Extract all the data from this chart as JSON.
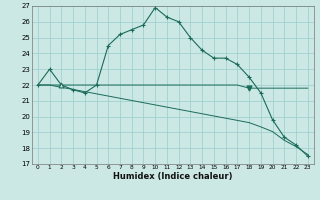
{
  "xlabel": "Humidex (Indice chaleur)",
  "background_color": "#cce8e4",
  "grid_color": "#99cccc",
  "line_color": "#1a6b5a",
  "x_values": [
    0,
    1,
    2,
    3,
    4,
    5,
    6,
    7,
    8,
    9,
    10,
    11,
    12,
    13,
    14,
    15,
    16,
    17,
    18,
    19,
    20,
    21,
    22,
    23
  ],
  "series1": [
    22.0,
    23.0,
    22.0,
    21.7,
    21.5,
    22.0,
    24.5,
    25.2,
    25.5,
    25.8,
    26.9,
    26.3,
    26.0,
    25.0,
    24.2,
    23.7,
    23.7,
    23.3,
    22.5,
    21.5,
    19.8,
    18.7,
    18.2,
    17.5
  ],
  "series2": [
    22.0,
    22.0,
    22.0,
    22.0,
    22.0,
    22.0,
    22.0,
    22.0,
    22.0,
    22.0,
    22.0,
    22.0,
    22.0,
    22.0,
    22.0,
    22.0,
    22.0,
    22.0,
    21.8,
    21.8,
    21.8,
    21.8,
    21.8,
    21.8
  ],
  "series3": [
    22.0,
    22.0,
    21.85,
    21.72,
    21.58,
    21.44,
    21.3,
    21.16,
    21.02,
    20.88,
    20.74,
    20.6,
    20.46,
    20.32,
    20.18,
    20.04,
    19.9,
    19.76,
    19.62,
    19.35,
    19.05,
    18.5,
    18.1,
    17.6
  ],
  "ylim": [
    17,
    27
  ],
  "xlim": [
    -0.5,
    23.5
  ],
  "yticks": [
    17,
    18,
    19,
    20,
    21,
    22,
    23,
    24,
    25,
    26,
    27
  ],
  "xticks": [
    0,
    1,
    2,
    3,
    4,
    5,
    6,
    7,
    8,
    9,
    10,
    11,
    12,
    13,
    14,
    15,
    16,
    17,
    18,
    19,
    20,
    21,
    22,
    23
  ],
  "tri_down_x": [
    18
  ],
  "tri_down_y": [
    21.8
  ],
  "tri_up_x": [
    2
  ],
  "tri_up_y": [
    22.0
  ]
}
